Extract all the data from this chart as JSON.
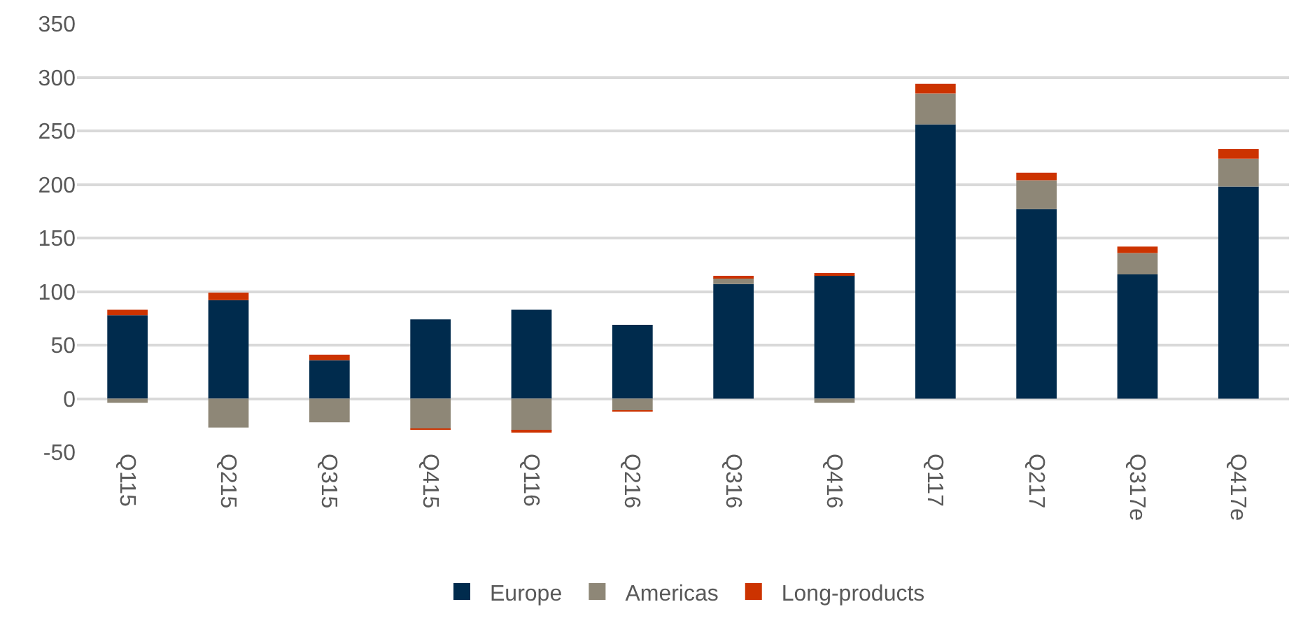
{
  "chart_data": {
    "type": "bar",
    "stacked": true,
    "categories": [
      "Q115",
      "Q215",
      "Q315",
      "Q415",
      "Q116",
      "Q216",
      "Q316",
      "Q416",
      "Q117",
      "Q217",
      "Q317e",
      "Q417e"
    ],
    "series": [
      {
        "name": "Europe",
        "color": "#002b4d",
        "values": [
          78,
          92,
          36,
          74,
          83,
          69,
          107,
          115,
          256,
          177,
          116,
          198
        ]
      },
      {
        "name": "Americas",
        "color": "#8e8777",
        "values": [
          -4,
          -27,
          -22,
          -28,
          -30,
          -11,
          6,
          -4,
          29,
          27,
          20,
          26
        ]
      },
      {
        "name": "Long-products",
        "color": "#cc3300",
        "values": [
          5,
          7,
          5,
          -1,
          -1,
          -1,
          1,
          2,
          9,
          7,
          6,
          9
        ]
      }
    ],
    "ylim": [
      -50,
      350
    ],
    "yticks": [
      -50,
      0,
      50,
      100,
      150,
      200,
      250,
      300,
      350
    ],
    "grid": "y",
    "legend": "bottom"
  }
}
